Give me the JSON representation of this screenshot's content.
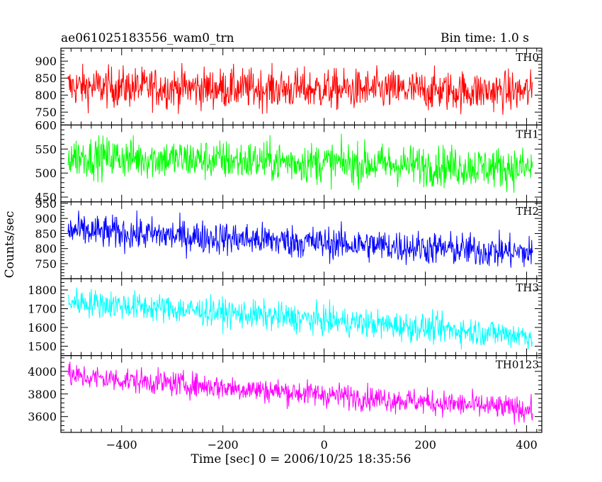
{
  "chart_data": {
    "type": "line",
    "title": "ae061025183556_wam0_trn",
    "subtitle": "Bin time: 1.0 s",
    "xlabel": "Time [sec] 0 = 2006/10/25 18:35:56",
    "ylabel": "Counts/sec",
    "xlim": [
      -520,
      430
    ],
    "x_ticks": [
      -400,
      -200,
      0,
      200,
      400
    ],
    "x_range": [
      -506,
      412
    ],
    "bin_seconds": 1.0,
    "panels": [
      {
        "name": "TH0",
        "color": "#ff0000",
        "ylim": [
          712,
          938
        ],
        "yticks": [
          750,
          800,
          850,
          900
        ],
        "start_level": 825,
        "end_level": 810,
        "noise_amp": 70,
        "hump": 0
      },
      {
        "name": "TH1",
        "color": "#00ff00",
        "ylim": [
          440,
          600
        ],
        "yticks": [
          450,
          500,
          550,
          600
        ],
        "start_level": 535,
        "end_level": 510,
        "noise_amp": 50,
        "hump": 0
      },
      {
        "name": "TH2",
        "color": "#0000ff",
        "ylim": [
          700,
          955
        ],
        "yticks": [
          750,
          800,
          850,
          900,
          950
        ],
        "start_level": 860,
        "end_level": 785,
        "noise_amp": 65,
        "hump": 0
      },
      {
        "name": "TH3",
        "color": "#00ffff",
        "ylim": [
          1450,
          1860
        ],
        "yticks": [
          1500,
          1600,
          1700,
          1800
        ],
        "start_level": 1740,
        "end_level": 1555,
        "noise_amp": 90,
        "hump": 0
      },
      {
        "name": "TH0123",
        "color": "#ff00ff",
        "ylim": [
          3460,
          4140
        ],
        "yticks": [
          3600,
          3800,
          4000
        ],
        "start_level": 3960,
        "end_level": 3660,
        "noise_amp": 130,
        "hump": 0
      }
    ]
  }
}
